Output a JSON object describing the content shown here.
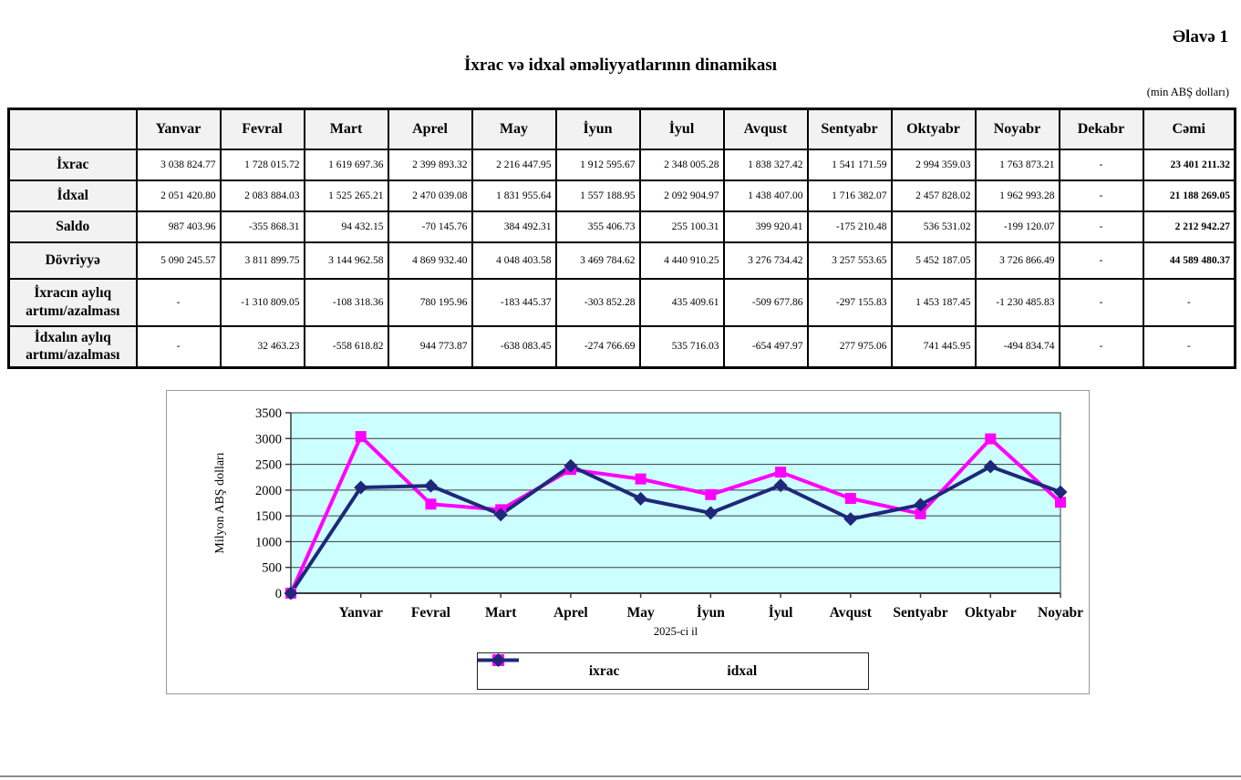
{
  "page": {
    "annex_label": "Əlavə 1",
    "title": "İxrac və idxal əməliyyatlarının dinamikası",
    "unit_note": "(min ABŞ dolları)"
  },
  "table": {
    "columns": [
      "",
      "Yanvar",
      "Fevral",
      "Mart",
      "Aprel",
      "May",
      "İyun",
      "İyul",
      "Avqust",
      "Sentyabr",
      "Oktyabr",
      "Noyabr",
      "Dekabr",
      "Cəmi"
    ],
    "rows": [
      {
        "label": "İxrac",
        "values": [
          "3 038 824.77",
          "1 728 015.72",
          "1 619 697.36",
          "2 399 893.32",
          "2 216 447.95",
          "1 912 595.67",
          "2 348 005.28",
          "1 838 327.42",
          "1 541 171.59",
          "2 994 359.03",
          "1 763 873.21",
          "-",
          "23 401 211.32"
        ]
      },
      {
        "label": "İdxal",
        "values": [
          "2 051 420.80",
          "2 083 884.03",
          "1 525 265.21",
          "2 470 039.08",
          "1 831 955.64",
          "1 557 188.95",
          "2 092 904.97",
          "1 438 407.00",
          "1 716 382.07",
          "2 457 828.02",
          "1 962 993.28",
          "-",
          "21 188 269.05"
        ]
      },
      {
        "label": "Saldo",
        "values": [
          "987 403.96",
          "-355 868.31",
          "94 432.15",
          "-70 145.76",
          "384 492.31",
          "355 406.73",
          "255 100.31",
          "399 920.41",
          "-175 210.48",
          "536 531.02",
          "-199 120.07",
          "-",
          "2 212 942.27"
        ]
      },
      {
        "label": "Dövriyyə",
        "values": [
          "5 090 245.57",
          "3 811 899.75",
          "3 144 962.58",
          "4 869 932.40",
          "4 048 403.58",
          "3 469 784.62",
          "4 440 910.25",
          "3 276 734.42",
          "3 257 553.65",
          "5 452 187.05",
          "3 726 866.49",
          "-",
          "44 589 480.37"
        ]
      },
      {
        "label": "İxracın aylıq artımı/azalması",
        "values": [
          "-",
          "-1 310 809.05",
          "-108 318.36",
          "780 195.96",
          "-183 445.37",
          "-303 852.28",
          "435 409.61",
          "-509 677.86",
          "-297 155.83",
          "1 453 187.45",
          "-1 230 485.83",
          "-",
          "-"
        ]
      },
      {
        "label": "İdxalın aylıq artımı/azalması",
        "values": [
          "-",
          "32 463.23",
          "-558 618.82",
          "944 773.87",
          "-638 083.45",
          "-274 766.69",
          "535 716.03",
          "-654 497.97",
          "277 975.06",
          "741 445.95",
          "-494 834.74",
          "-",
          "-"
        ]
      }
    ]
  },
  "chart_data": {
    "type": "line",
    "categories": [
      "",
      "Yanvar",
      "Fevral",
      "Mart",
      "Aprel",
      "May",
      "İyun",
      "İyul",
      "Avqust",
      "Sentyabr",
      "Oktyabr",
      "Noyabr"
    ],
    "series": [
      {
        "name": "ixrac",
        "color": "#FF00FF",
        "marker": "square",
        "values": [
          0,
          3038.8,
          1728.0,
          1619.7,
          2399.9,
          2216.4,
          1912.6,
          2348.0,
          1838.3,
          1541.2,
          2994.4,
          1763.9
        ]
      },
      {
        "name": "idxal",
        "color": "#1E2878",
        "marker": "diamond",
        "values": [
          0,
          2051.4,
          2083.9,
          1525.3,
          2470.0,
          1832.0,
          1557.2,
          2092.9,
          1438.4,
          1716.4,
          2457.8,
          1963.0
        ]
      }
    ],
    "title": "",
    "xlabel": "2025-ci il",
    "ylabel": "Milyon ABŞ dolları",
    "ylim": [
      0,
      3500
    ],
    "ytick_step": 500,
    "grid": true,
    "legend_position": "bottom",
    "plot_bg": "#CCFFFF"
  }
}
